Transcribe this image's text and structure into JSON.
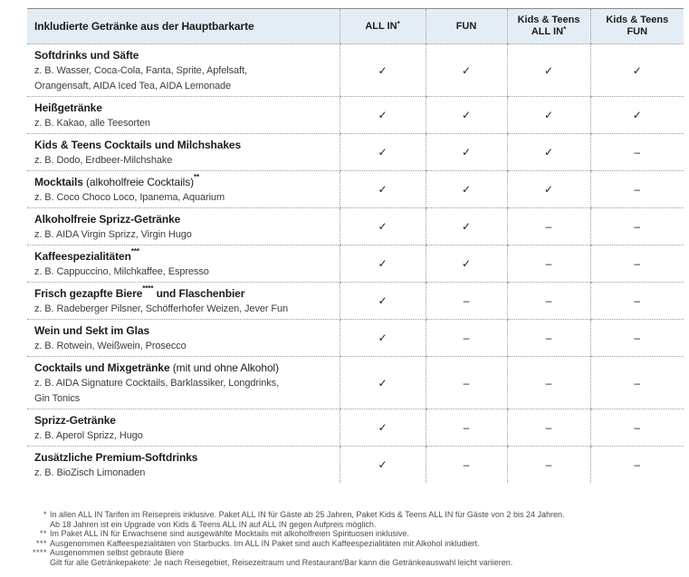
{
  "colors": {
    "header_bg": "#e4edf6",
    "text_dark": "#1c1c1a",
    "dotted_line": "#9c9c9c"
  },
  "table": {
    "title": "Inkludierte Getränke aus der Hauptbarkarte",
    "columns": [
      {
        "line1": "ALL IN",
        "sup1": "*",
        "line2": "",
        "sup2": ""
      },
      {
        "line1": "FUN",
        "sup1": "",
        "line2": "",
        "sup2": ""
      },
      {
        "line1": "Kids & Teens",
        "sup1": "",
        "line2": "ALL IN",
        "sup2": "*"
      },
      {
        "line1": "Kids & Teens",
        "sup1": "",
        "line2": "FUN",
        "sup2": ""
      }
    ],
    "check_symbol": "✓",
    "dash_symbol": "–",
    "rows": [
      {
        "t1": "Softdrinks und Säfte",
        "s1": "",
        "n1": "",
        "s2": "",
        "t2": "",
        "subtitle": "z. B. Wasser, Coca-Cola, Fanta, Sprite, Apfelsaft,\nOrangensaft, AIDA Iced Tea, AIDA Lemonade",
        "values": [
          "✓",
          "✓",
          "✓",
          "✓"
        ]
      },
      {
        "t1": "Heißgetränke",
        "s1": "",
        "n1": "",
        "s2": "",
        "t2": "",
        "subtitle": "z. B. Kakao, alle Teesorten",
        "values": [
          "✓",
          "✓",
          "✓",
          "✓"
        ]
      },
      {
        "t1": "Kids & Teens Cocktails und Milchshakes",
        "s1": "",
        "n1": "",
        "s2": "",
        "t2": "",
        "subtitle": "z. B. Dodo, Erdbeer-Milchshake",
        "values": [
          "✓",
          "✓",
          "✓",
          "–"
        ]
      },
      {
        "t1": "Mocktails",
        "s1": "",
        "n1": " (alkoholfreie Cocktails)",
        "s2": "**",
        "t2": "",
        "subtitle": "z. B. Coco Choco Loco, Ipanema, Aquarium",
        "values": [
          "✓",
          "✓",
          "✓",
          "–"
        ]
      },
      {
        "t1": "Alkoholfreie Sprizz-Getränke",
        "s1": "",
        "n1": "",
        "s2": "",
        "t2": "",
        "subtitle": "z. B. AIDA Virgin Sprizz, Virgin Hugo",
        "values": [
          "✓",
          "✓",
          "–",
          "–"
        ]
      },
      {
        "t1": "Kaffeespezialitäten",
        "s1": "***",
        "n1": "",
        "s2": "",
        "t2": "",
        "subtitle": "z. B. Cappuccino, Milchkaffee, Espresso",
        "values": [
          "✓",
          "✓",
          "–",
          "–"
        ]
      },
      {
        "t1": "Frisch gezapfte Biere",
        "s1": "****",
        "n1": "",
        "s2": "",
        "t2": " und Flaschenbier",
        "subtitle": "z. B. Radeberger Pilsner, Schöfferhofer Weizen, Jever Fun",
        "values": [
          "✓",
          "–",
          "–",
          "–"
        ]
      },
      {
        "t1": "Wein und Sekt im Glas",
        "s1": "",
        "n1": "",
        "s2": "",
        "t2": "",
        "subtitle": "z. B. Rotwein, Weißwein, Prosecco",
        "values": [
          "✓",
          "–",
          "–",
          "–"
        ]
      },
      {
        "t1": "Cocktails und Mixgetränke",
        "s1": "",
        "n1": " (mit und ohne Alkohol)",
        "s2": "",
        "t2": "",
        "subtitle": "z. B. AIDA Signature Cocktails, Barklassiker, Longdrinks,\nGin Tonics",
        "values": [
          "✓",
          "–",
          "–",
          "–"
        ]
      },
      {
        "t1": "Sprizz-Getränke",
        "s1": "",
        "n1": "",
        "s2": "",
        "t2": "",
        "subtitle": "z. B. Aperol Sprizz, Hugo",
        "values": [
          "✓",
          "–",
          "–",
          "–"
        ]
      },
      {
        "t1": "Zusätzliche Premium-Softdrinks",
        "s1": "",
        "n1": "",
        "s2": "",
        "t2": "",
        "subtitle": "z. B. BioZisch Limonaden",
        "values": [
          "✓",
          "–",
          "–",
          "–"
        ]
      }
    ]
  },
  "footnotes": [
    {
      "sym": "*",
      "text": "In allen ALL IN Tarifen im Reisepreis inklusive. Paket ALL IN für Gäste ab 25 Jahren, Paket Kids & Teens ALL IN für Gäste von 2 bis 24 Jahren."
    },
    {
      "sym": "",
      "text": "Ab 18 Jahren ist ein Upgrade von Kids & Teens ALL IN auf ALL IN gegen Aufpreis möglich."
    },
    {
      "sym": "**",
      "text": "Im Paket ALL IN für Erwachsene sind ausgewählte Mocktails mit alkoholfreien Spirituosen inklusive."
    },
    {
      "sym": "***",
      "text": "Ausgenommen Kaffeespezialitäten von Starbucks. Im ALL IN Paket sind auch Kaffeespezialitäten mit Alkohol inkludiert."
    },
    {
      "sym": "****",
      "text": "Ausgenommen selbst gebraute Biere"
    },
    {
      "sym": "",
      "text": "Gilt für alle Getränkepakete: Je nach Reisegebiet, Reisezeitraum und Restaurant/Bar kann die Getränkeauswahl leicht variieren."
    }
  ]
}
